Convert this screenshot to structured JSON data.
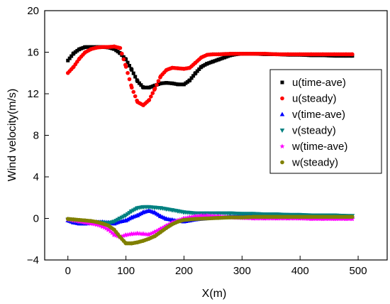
{
  "chart_data": {
    "type": "scatter",
    "xlabel": "X(m)",
    "ylabel": "Wind velocity(m/s)",
    "xlim": [
      -40,
      550
    ],
    "ylim": [
      -4,
      20
    ],
    "xticks": [
      0,
      100,
      200,
      300,
      400,
      500
    ],
    "yticks": [
      -4,
      0,
      4,
      8,
      12,
      16,
      20
    ],
    "xtick_labels": [
      "0",
      "100",
      "200",
      "300",
      "400",
      "500"
    ],
    "ytick_labels": [
      "−4",
      "0",
      "4",
      "8",
      "12",
      "16",
      "20"
    ],
    "grid": false,
    "legend_position": "right",
    "series": [
      {
        "name": "u(time-ave)",
        "marker": "square",
        "color": "#000000",
        "points": [
          [
            0,
            15.2
          ],
          [
            10,
            15.9
          ],
          [
            20,
            16.3
          ],
          [
            30,
            16.5
          ],
          [
            40,
            16.5
          ],
          [
            50,
            16.5
          ],
          [
            60,
            16.5
          ],
          [
            70,
            16.45
          ],
          [
            80,
            16.3
          ],
          [
            90,
            15.9
          ],
          [
            100,
            15.3
          ],
          [
            110,
            14.3
          ],
          [
            120,
            13.2
          ],
          [
            130,
            12.6
          ],
          [
            140,
            12.6
          ],
          [
            150,
            12.8
          ],
          [
            160,
            13.0
          ],
          [
            170,
            13.05
          ],
          [
            180,
            13.0
          ],
          [
            190,
            12.9
          ],
          [
            200,
            12.9
          ],
          [
            210,
            13.3
          ],
          [
            220,
            14.0
          ],
          [
            230,
            14.6
          ],
          [
            240,
            14.9
          ],
          [
            250,
            15.1
          ],
          [
            260,
            15.3
          ],
          [
            270,
            15.5
          ],
          [
            280,
            15.7
          ],
          [
            290,
            15.8
          ],
          [
            300,
            15.85
          ],
          [
            320,
            15.85
          ],
          [
            340,
            15.8
          ],
          [
            360,
            15.8
          ],
          [
            380,
            15.75
          ],
          [
            400,
            15.75
          ],
          [
            420,
            15.7
          ],
          [
            440,
            15.7
          ],
          [
            460,
            15.65
          ],
          [
            480,
            15.65
          ],
          [
            490,
            15.65
          ]
        ]
      },
      {
        "name": "u(steady)",
        "marker": "circle",
        "color": "#ff0000",
        "points": [
          [
            0,
            14.0
          ],
          [
            10,
            14.6
          ],
          [
            20,
            15.4
          ],
          [
            30,
            16.0
          ],
          [
            40,
            16.3
          ],
          [
            50,
            16.45
          ],
          [
            60,
            16.5
          ],
          [
            70,
            16.5
          ],
          [
            80,
            16.55
          ],
          [
            90,
            16.4
          ],
          [
            100,
            14.6
          ],
          [
            110,
            12.6
          ],
          [
            120,
            11.2
          ],
          [
            130,
            10.9
          ],
          [
            140,
            11.4
          ],
          [
            150,
            12.5
          ],
          [
            160,
            13.7
          ],
          [
            170,
            14.3
          ],
          [
            180,
            14.5
          ],
          [
            190,
            14.45
          ],
          [
            200,
            14.4
          ],
          [
            210,
            14.5
          ],
          [
            220,
            15.0
          ],
          [
            230,
            15.5
          ],
          [
            240,
            15.75
          ],
          [
            250,
            15.8
          ],
          [
            260,
            15.8
          ],
          [
            280,
            15.85
          ],
          [
            300,
            15.85
          ],
          [
            320,
            15.85
          ],
          [
            340,
            15.85
          ],
          [
            360,
            15.8
          ],
          [
            380,
            15.8
          ],
          [
            400,
            15.8
          ],
          [
            420,
            15.8
          ],
          [
            440,
            15.8
          ],
          [
            460,
            15.8
          ],
          [
            480,
            15.8
          ],
          [
            490,
            15.8
          ]
        ]
      },
      {
        "name": "v(time-ave)",
        "marker": "triangle-up",
        "color": "#0000ff",
        "points": [
          [
            0,
            -0.2
          ],
          [
            10,
            -0.4
          ],
          [
            20,
            -0.5
          ],
          [
            30,
            -0.5
          ],
          [
            40,
            -0.45
          ],
          [
            50,
            -0.35
          ],
          [
            60,
            -0.35
          ],
          [
            70,
            -0.4
          ],
          [
            80,
            -0.5
          ],
          [
            90,
            -0.3
          ],
          [
            100,
            -0.2
          ],
          [
            110,
            0.1
          ],
          [
            120,
            0.3
          ],
          [
            130,
            0.6
          ],
          [
            140,
            0.75
          ],
          [
            150,
            0.55
          ],
          [
            160,
            0.2
          ],
          [
            170,
            -0.05
          ],
          [
            180,
            -0.15
          ],
          [
            190,
            -0.25
          ],
          [
            200,
            -0.3
          ],
          [
            210,
            -0.2
          ],
          [
            220,
            -0.1
          ],
          [
            240,
            0.0
          ],
          [
            260,
            0.1
          ],
          [
            280,
            0.2
          ],
          [
            300,
            0.25
          ],
          [
            320,
            0.3
          ],
          [
            340,
            0.3
          ],
          [
            360,
            0.3
          ],
          [
            380,
            0.3
          ],
          [
            400,
            0.25
          ],
          [
            420,
            0.25
          ],
          [
            440,
            0.2
          ],
          [
            460,
            0.2
          ],
          [
            480,
            0.15
          ],
          [
            490,
            0.15
          ]
        ]
      },
      {
        "name": "v(steady)",
        "marker": "triangle-down",
        "color": "#008080",
        "points": [
          [
            0,
            -0.1
          ],
          [
            10,
            -0.2
          ],
          [
            20,
            -0.3
          ],
          [
            30,
            -0.35
          ],
          [
            40,
            -0.35
          ],
          [
            50,
            -0.35
          ],
          [
            60,
            -0.4
          ],
          [
            70,
            -0.45
          ],
          [
            80,
            -0.3
          ],
          [
            90,
            0.0
          ],
          [
            100,
            0.3
          ],
          [
            110,
            0.7
          ],
          [
            120,
            1.0
          ],
          [
            130,
            1.1
          ],
          [
            140,
            1.1
          ],
          [
            150,
            1.05
          ],
          [
            160,
            1.0
          ],
          [
            170,
            0.9
          ],
          [
            180,
            0.8
          ],
          [
            190,
            0.7
          ],
          [
            200,
            0.6
          ],
          [
            220,
            0.5
          ],
          [
            240,
            0.5
          ],
          [
            260,
            0.5
          ],
          [
            280,
            0.5
          ],
          [
            300,
            0.45
          ],
          [
            320,
            0.45
          ],
          [
            340,
            0.4
          ],
          [
            360,
            0.4
          ],
          [
            380,
            0.35
          ],
          [
            400,
            0.35
          ],
          [
            420,
            0.3
          ],
          [
            440,
            0.3
          ],
          [
            460,
            0.3
          ],
          [
            480,
            0.25
          ],
          [
            490,
            0.25
          ]
        ]
      },
      {
        "name": "w(time-ave)",
        "marker": "star",
        "color": "#ff00ff",
        "points": [
          [
            0,
            -0.1
          ],
          [
            10,
            -0.2
          ],
          [
            20,
            -0.3
          ],
          [
            30,
            -0.4
          ],
          [
            40,
            -0.5
          ],
          [
            50,
            -0.6
          ],
          [
            60,
            -0.8
          ],
          [
            70,
            -1.1
          ],
          [
            80,
            -1.6
          ],
          [
            90,
            -1.8
          ],
          [
            100,
            -1.6
          ],
          [
            110,
            -1.5
          ],
          [
            120,
            -1.45
          ],
          [
            130,
            -1.5
          ],
          [
            140,
            -1.55
          ],
          [
            150,
            -1.3
          ],
          [
            160,
            -1.0
          ],
          [
            170,
            -0.7
          ],
          [
            180,
            -0.4
          ],
          [
            190,
            -0.2
          ],
          [
            200,
            0.0
          ],
          [
            210,
            0.1
          ],
          [
            220,
            0.2
          ],
          [
            230,
            0.25
          ],
          [
            240,
            0.25
          ],
          [
            260,
            0.2
          ],
          [
            280,
            0.1
          ],
          [
            300,
            0.05
          ],
          [
            320,
            0.0
          ],
          [
            340,
            0.0
          ],
          [
            360,
            0.0
          ],
          [
            380,
            0.0
          ],
          [
            400,
            0.0
          ],
          [
            420,
            -0.05
          ],
          [
            440,
            -0.05
          ],
          [
            460,
            -0.05
          ],
          [
            480,
            -0.05
          ],
          [
            490,
            -0.05
          ]
        ]
      },
      {
        "name": "w(steady)",
        "marker": "circle",
        "color": "#808000",
        "points": [
          [
            0,
            -0.05
          ],
          [
            10,
            -0.1
          ],
          [
            20,
            -0.15
          ],
          [
            30,
            -0.2
          ],
          [
            40,
            -0.25
          ],
          [
            50,
            -0.35
          ],
          [
            60,
            -0.5
          ],
          [
            70,
            -0.7
          ],
          [
            80,
            -1.1
          ],
          [
            90,
            -1.8
          ],
          [
            100,
            -2.4
          ],
          [
            110,
            -2.4
          ],
          [
            120,
            -2.3
          ],
          [
            130,
            -2.15
          ],
          [
            140,
            -1.95
          ],
          [
            150,
            -1.7
          ],
          [
            160,
            -1.3
          ],
          [
            170,
            -0.9
          ],
          [
            180,
            -0.55
          ],
          [
            190,
            -0.3
          ],
          [
            200,
            -0.15
          ],
          [
            220,
            -0.05
          ],
          [
            240,
            0.0
          ],
          [
            260,
            0.05
          ],
          [
            280,
            0.1
          ],
          [
            300,
            0.1
          ],
          [
            320,
            0.15
          ],
          [
            340,
            0.15
          ],
          [
            360,
            0.15
          ],
          [
            380,
            0.15
          ],
          [
            400,
            0.15
          ],
          [
            420,
            0.15
          ],
          [
            440,
            0.15
          ],
          [
            460,
            0.15
          ],
          [
            480,
            0.15
          ],
          [
            490,
            0.15
          ]
        ]
      }
    ]
  }
}
